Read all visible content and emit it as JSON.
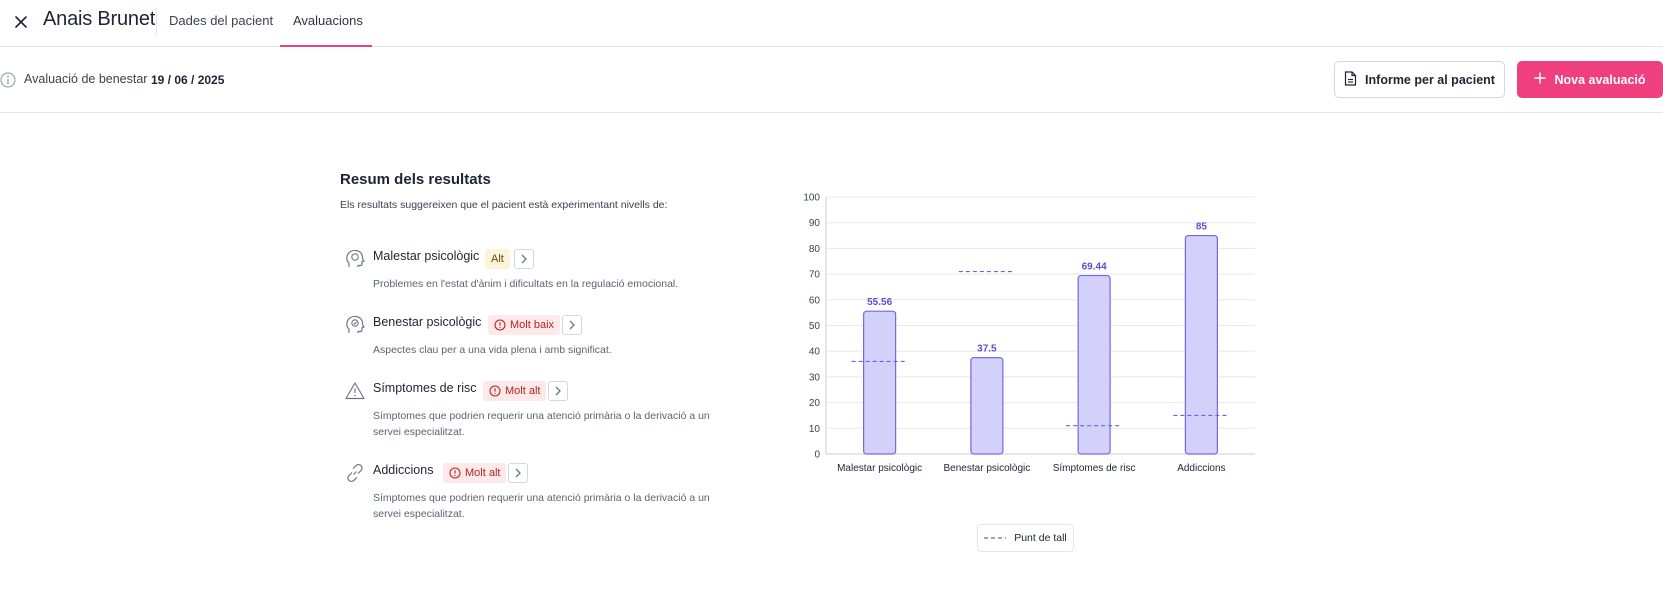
{
  "header": {
    "patient_name": "Anais Brunet",
    "tabs": [
      {
        "label": "Dades del pacient",
        "active": false
      },
      {
        "label": "Avaluacions",
        "active": true
      }
    ],
    "accent_color": "#e8457e"
  },
  "subheader": {
    "eval_label": "Avaluació de benestar",
    "eval_date": "19 / 06 / 2025",
    "report_button": "Informe per al pacient",
    "new_button": "Nova avaluació",
    "new_button_color": "#ef3f7e"
  },
  "summary": {
    "title": "Resum dels resultats",
    "subtitle": "Els resultats suggereixen que el pacient està experimentant nivells de:",
    "items": [
      {
        "icon": "head-icon",
        "title": "Malestar psicològic",
        "badge": "Alt",
        "badge_level": "warning",
        "desc": "Problemes en l'estat d'ànim i dificultats en la regulació emocional."
      },
      {
        "icon": "head-check-icon",
        "title": "Benestar psicològic",
        "badge": "Molt baix",
        "badge_level": "danger",
        "desc": "Aspectes clau per a una vida plena i amb significat."
      },
      {
        "icon": "warning-triangle-icon",
        "title": "Símptomes de risc",
        "badge": "Molt alt",
        "badge_level": "danger",
        "desc": "Símptomes que podrien requerir una atenció primària o la derivació a un servei especialitzat."
      },
      {
        "icon": "link-icon",
        "title": "Addiccions",
        "badge": "Molt alt",
        "badge_level": "danger",
        "desc": "Símptomes que podrien requerir una atenció primària o la derivació a un servei especialitzat."
      }
    ]
  },
  "chart_data": {
    "type": "bar",
    "categories": [
      "Malestar psicològic",
      "Benestar psicològic",
      "Símptomes de risc",
      "Addiccions"
    ],
    "values": [
      55.56,
      37.5,
      69.44,
      85
    ],
    "value_labels": [
      "55.56",
      "37.5",
      "69.44",
      "85"
    ],
    "cutoffs": [
      36,
      71,
      11,
      15
    ],
    "ylim": [
      0,
      100
    ],
    "yticks": [
      0,
      10,
      20,
      30,
      40,
      50,
      60,
      70,
      80,
      90,
      100
    ],
    "grid": true,
    "legend": {
      "label": "Punt de tall",
      "placement": "bottom"
    },
    "bar_fill": "#d3d0fa",
    "bar_stroke": "#7368e6",
    "label_color": "#5b4fd6"
  }
}
